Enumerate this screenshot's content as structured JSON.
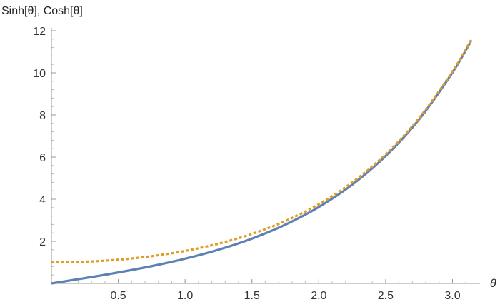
{
  "chart_data": {
    "type": "line",
    "title": "",
    "ylabel": "Sinh[θ], Cosh[θ]",
    "xlabel": "θ",
    "xlim": [
      0,
      3.1416
    ],
    "ylim": [
      0,
      12
    ],
    "grid": false,
    "x_ticks": [
      {
        "value": 0.5,
        "label": "0.5"
      },
      {
        "value": 1.0,
        "label": "1.0"
      },
      {
        "value": 1.5,
        "label": "1.5"
      },
      {
        "value": 2.0,
        "label": "2.0"
      },
      {
        "value": 2.5,
        "label": "2.5"
      },
      {
        "value": 3.0,
        "label": "3.0"
      }
    ],
    "y_ticks": [
      {
        "value": 2,
        "label": "2"
      },
      {
        "value": 4,
        "label": "4"
      },
      {
        "value": 6,
        "label": "6"
      },
      {
        "value": 8,
        "label": "8"
      },
      {
        "value": 10,
        "label": "10"
      },
      {
        "value": 12,
        "label": "12"
      }
    ],
    "x_minor_step": 0.1,
    "y_minor_step": 0.4,
    "x": [
      0,
      0.25,
      0.5,
      0.75,
      1.0,
      1.25,
      1.5,
      1.75,
      2.0,
      2.25,
      2.5,
      2.75,
      3.0,
      3.1416
    ],
    "series": [
      {
        "color": "#5e81b5",
        "style": "solid",
        "values": [
          0,
          0.253,
          0.521,
          0.822,
          1.175,
          1.602,
          2.129,
          2.79,
          3.627,
          4.691,
          6.05,
          7.789,
          10.018,
          11.549
        ]
      },
      {
        "color": "#e19c24",
        "style": "dotted",
        "values": [
          1.0,
          1.031,
          1.128,
          1.295,
          1.543,
          1.888,
          2.352,
          2.964,
          3.762,
          4.797,
          6.132,
          7.853,
          10.068,
          11.592
        ]
      }
    ]
  }
}
